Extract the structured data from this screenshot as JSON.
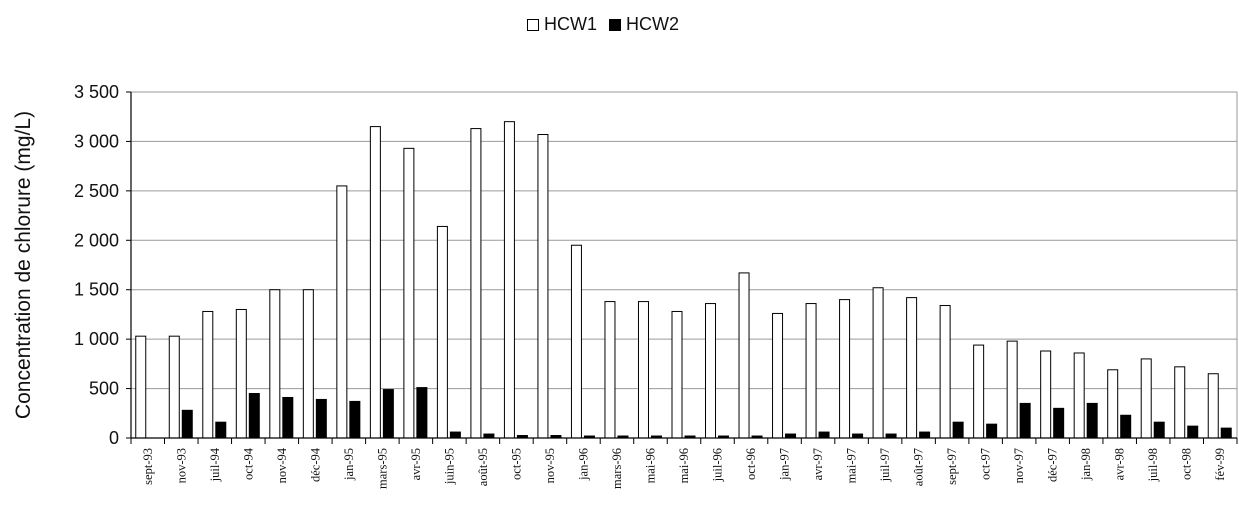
{
  "chart_data": {
    "type": "bar",
    "ylabel": "Concentration de chlorure (mg/L)",
    "xlabel": "",
    "ylim": [
      0,
      3500
    ],
    "yticks": [
      0,
      500,
      1000,
      1500,
      2000,
      2500,
      3000,
      3500
    ],
    "ytick_labels": [
      "0",
      "500",
      "1 000",
      "1 500",
      "2 000",
      "2 500",
      "3 000",
      "3 500"
    ],
    "grid": true,
    "legend_position": "top-center",
    "categories": [
      "sept-93",
      "nov-93",
      "juil-94",
      "oct-94",
      "nov-94",
      "déc-94",
      "jan-95",
      "mars-95",
      "avr-95",
      "juin-95",
      "août-95",
      "oct-95",
      "nov-95",
      "jan-96",
      "mars-96",
      "mai-96",
      "mai-96",
      "juil-96",
      "oct-96",
      "jan-97",
      "avr-97",
      "mai-97",
      "juil-97",
      "août-97",
      "sept-97",
      "oct-97",
      "nov-97",
      "déc-97",
      "jan-98",
      "avr-98",
      "juil-98",
      "oct-98",
      "fév-99"
    ],
    "series": [
      {
        "name": "HCW1",
        "color": "#ffffff",
        "stroke": "#000000",
        "values": [
          1030,
          1030,
          1280,
          1300,
          1500,
          1500,
          2550,
          3150,
          2930,
          2140,
          3130,
          3200,
          3070,
          1950,
          1380,
          1380,
          1280,
          1360,
          1670,
          1260,
          1360,
          1400,
          1520,
          1420,
          1340,
          940,
          980,
          880,
          860,
          690,
          800,
          720,
          650
        ]
      },
      {
        "name": "HCW2",
        "color": "#000000",
        "stroke": "#000000",
        "values": [
          0,
          280,
          160,
          450,
          410,
          390,
          370,
          490,
          510,
          60,
          40,
          25,
          25,
          20,
          20,
          20,
          20,
          20,
          20,
          40,
          60,
          40,
          40,
          60,
          160,
          140,
          350,
          300,
          350,
          230,
          160,
          120,
          100
        ]
      }
    ]
  }
}
